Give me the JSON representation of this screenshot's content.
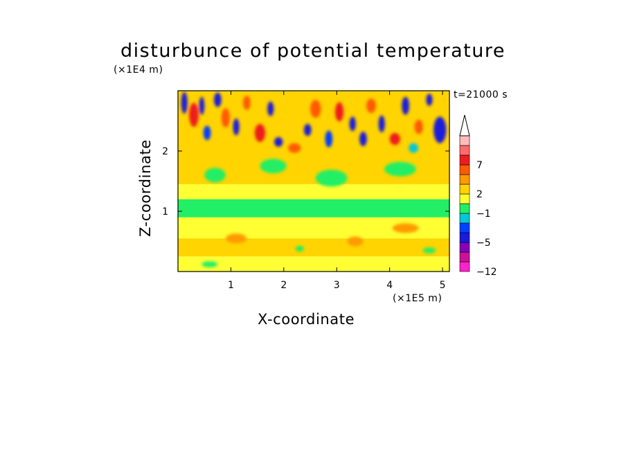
{
  "chart_data": {
    "type": "heatmap",
    "title": "disturbunce of potential temperature",
    "time_label": "t=21000 s",
    "xlabel": "X-coordinate",
    "ylabel": "Z-coordinate",
    "x_unit": "(×1E5 m)",
    "y_unit": "(×1E4 m)",
    "xlim": [
      0,
      5.13
    ],
    "ylim": [
      0,
      3.0
    ],
    "x_ticks": [
      "1",
      "2",
      "3",
      "4",
      "5"
    ],
    "x_tick_values": [
      1,
      2,
      3,
      4,
      5
    ],
    "y_ticks": [
      "1",
      "2"
    ],
    "y_tick_values": [
      1,
      2
    ],
    "colorbar": {
      "tick_labels": [
        "7",
        "2",
        "−1",
        "−5",
        "−12"
      ],
      "tick_values": [
        7,
        2,
        -1,
        -5,
        -12
      ],
      "colors_bottom_to_top": [
        "#ff22cc",
        "#cc1199",
        "#8800bb",
        "#1a1adb",
        "#0040ff",
        "#00c8d8",
        "#22ee66",
        "#ffff33",
        "#ffd400",
        "#ff9a00",
        "#ff5a00",
        "#ee1d1d",
        "#ff6a6a",
        "#ffbcbc"
      ],
      "extend": "max"
    },
    "description_note": ""
  },
  "layers": [
    {
      "z0": 0.0,
      "z1": 0.25,
      "color": "#ffff33"
    },
    {
      "z0": 0.25,
      "z1": 0.55,
      "color": "#ffd400"
    },
    {
      "z0": 0.55,
      "z1": 0.9,
      "color": "#ffff33"
    },
    {
      "z0": 0.9,
      "z1": 1.2,
      "color": "#22ee66"
    },
    {
      "z0": 1.2,
      "z1": 1.45,
      "color": "#ffff33"
    },
    {
      "z0": 1.45,
      "z1": 3.0,
      "color": "#ffd400"
    }
  ],
  "blobs": [
    {
      "x": 0.12,
      "z": 2.8,
      "rx": 0.06,
      "rz": 0.18,
      "color": "#1a1adb"
    },
    {
      "x": 0.3,
      "z": 2.6,
      "rx": 0.09,
      "rz": 0.2,
      "color": "#ee1d1d"
    },
    {
      "x": 0.45,
      "z": 2.75,
      "rx": 0.05,
      "rz": 0.15,
      "color": "#1a1adb"
    },
    {
      "x": 0.55,
      "z": 2.3,
      "rx": 0.07,
      "rz": 0.12,
      "color": "#0040ff"
    },
    {
      "x": 0.75,
      "z": 2.85,
      "rx": 0.07,
      "rz": 0.12,
      "color": "#1a1adb"
    },
    {
      "x": 0.9,
      "z": 2.55,
      "rx": 0.08,
      "rz": 0.16,
      "color": "#ff5a00"
    },
    {
      "x": 1.1,
      "z": 2.4,
      "rx": 0.06,
      "rz": 0.14,
      "color": "#1a1adb"
    },
    {
      "x": 1.3,
      "z": 2.8,
      "rx": 0.07,
      "rz": 0.12,
      "color": "#ff5a00"
    },
    {
      "x": 1.55,
      "z": 2.3,
      "rx": 0.1,
      "rz": 0.15,
      "color": "#ee1d1d"
    },
    {
      "x": 1.75,
      "z": 2.7,
      "rx": 0.06,
      "rz": 0.12,
      "color": "#1a1adb"
    },
    {
      "x": 1.9,
      "z": 2.15,
      "rx": 0.08,
      "rz": 0.08,
      "color": "#1a1adb"
    },
    {
      "x": 2.2,
      "z": 2.05,
      "rx": 0.12,
      "rz": 0.08,
      "color": "#ff5a00"
    },
    {
      "x": 2.45,
      "z": 2.35,
      "rx": 0.07,
      "rz": 0.1,
      "color": "#1a1adb"
    },
    {
      "x": 2.6,
      "z": 2.7,
      "rx": 0.1,
      "rz": 0.15,
      "color": "#ff5a00"
    },
    {
      "x": 2.85,
      "z": 2.2,
      "rx": 0.07,
      "rz": 0.14,
      "color": "#0040ff"
    },
    {
      "x": 3.05,
      "z": 2.65,
      "rx": 0.08,
      "rz": 0.16,
      "color": "#ee1d1d"
    },
    {
      "x": 3.3,
      "z": 2.45,
      "rx": 0.06,
      "rz": 0.12,
      "color": "#1a1adb"
    },
    {
      "x": 3.5,
      "z": 2.2,
      "rx": 0.07,
      "rz": 0.12,
      "color": "#1a1adb"
    },
    {
      "x": 3.65,
      "z": 2.75,
      "rx": 0.09,
      "rz": 0.12,
      "color": "#ff5a00"
    },
    {
      "x": 3.85,
      "z": 2.45,
      "rx": 0.06,
      "rz": 0.14,
      "color": "#1a1adb"
    },
    {
      "x": 4.1,
      "z": 2.2,
      "rx": 0.1,
      "rz": 0.1,
      "color": "#ee1d1d"
    },
    {
      "x": 4.3,
      "z": 2.75,
      "rx": 0.07,
      "rz": 0.15,
      "color": "#1a1adb"
    },
    {
      "x": 4.55,
      "z": 2.4,
      "rx": 0.08,
      "rz": 0.12,
      "color": "#ff5a00"
    },
    {
      "x": 4.75,
      "z": 2.85,
      "rx": 0.06,
      "rz": 0.1,
      "color": "#1a1adb"
    },
    {
      "x": 4.95,
      "z": 2.35,
      "rx": 0.12,
      "rz": 0.22,
      "color": "#1a1adb"
    },
    {
      "x": 4.45,
      "z": 2.05,
      "rx": 0.09,
      "rz": 0.08,
      "color": "#00c8d8"
    },
    {
      "x": 0.7,
      "z": 1.6,
      "rx": 0.2,
      "rz": 0.12,
      "color": "#22ee66"
    },
    {
      "x": 1.8,
      "z": 1.75,
      "rx": 0.25,
      "rz": 0.12,
      "color": "#22ee66"
    },
    {
      "x": 2.9,
      "z": 1.55,
      "rx": 0.3,
      "rz": 0.14,
      "color": "#22ee66"
    },
    {
      "x": 4.2,
      "z": 1.7,
      "rx": 0.3,
      "rz": 0.12,
      "color": "#22ee66"
    },
    {
      "x": 1.1,
      "z": 0.55,
      "rx": 0.2,
      "rz": 0.08,
      "color": "#ff9a00"
    },
    {
      "x": 3.35,
      "z": 0.5,
      "rx": 0.15,
      "rz": 0.08,
      "color": "#ff9a00"
    },
    {
      "x": 4.3,
      "z": 0.72,
      "rx": 0.25,
      "rz": 0.08,
      "color": "#ff9a00"
    },
    {
      "x": 0.6,
      "z": 0.12,
      "rx": 0.15,
      "rz": 0.05,
      "color": "#22ee66"
    },
    {
      "x": 2.3,
      "z": 0.38,
      "rx": 0.08,
      "rz": 0.05,
      "color": "#22ee66"
    },
    {
      "x": 4.75,
      "z": 0.35,
      "rx": 0.12,
      "rz": 0.05,
      "color": "#22ee66"
    }
  ]
}
